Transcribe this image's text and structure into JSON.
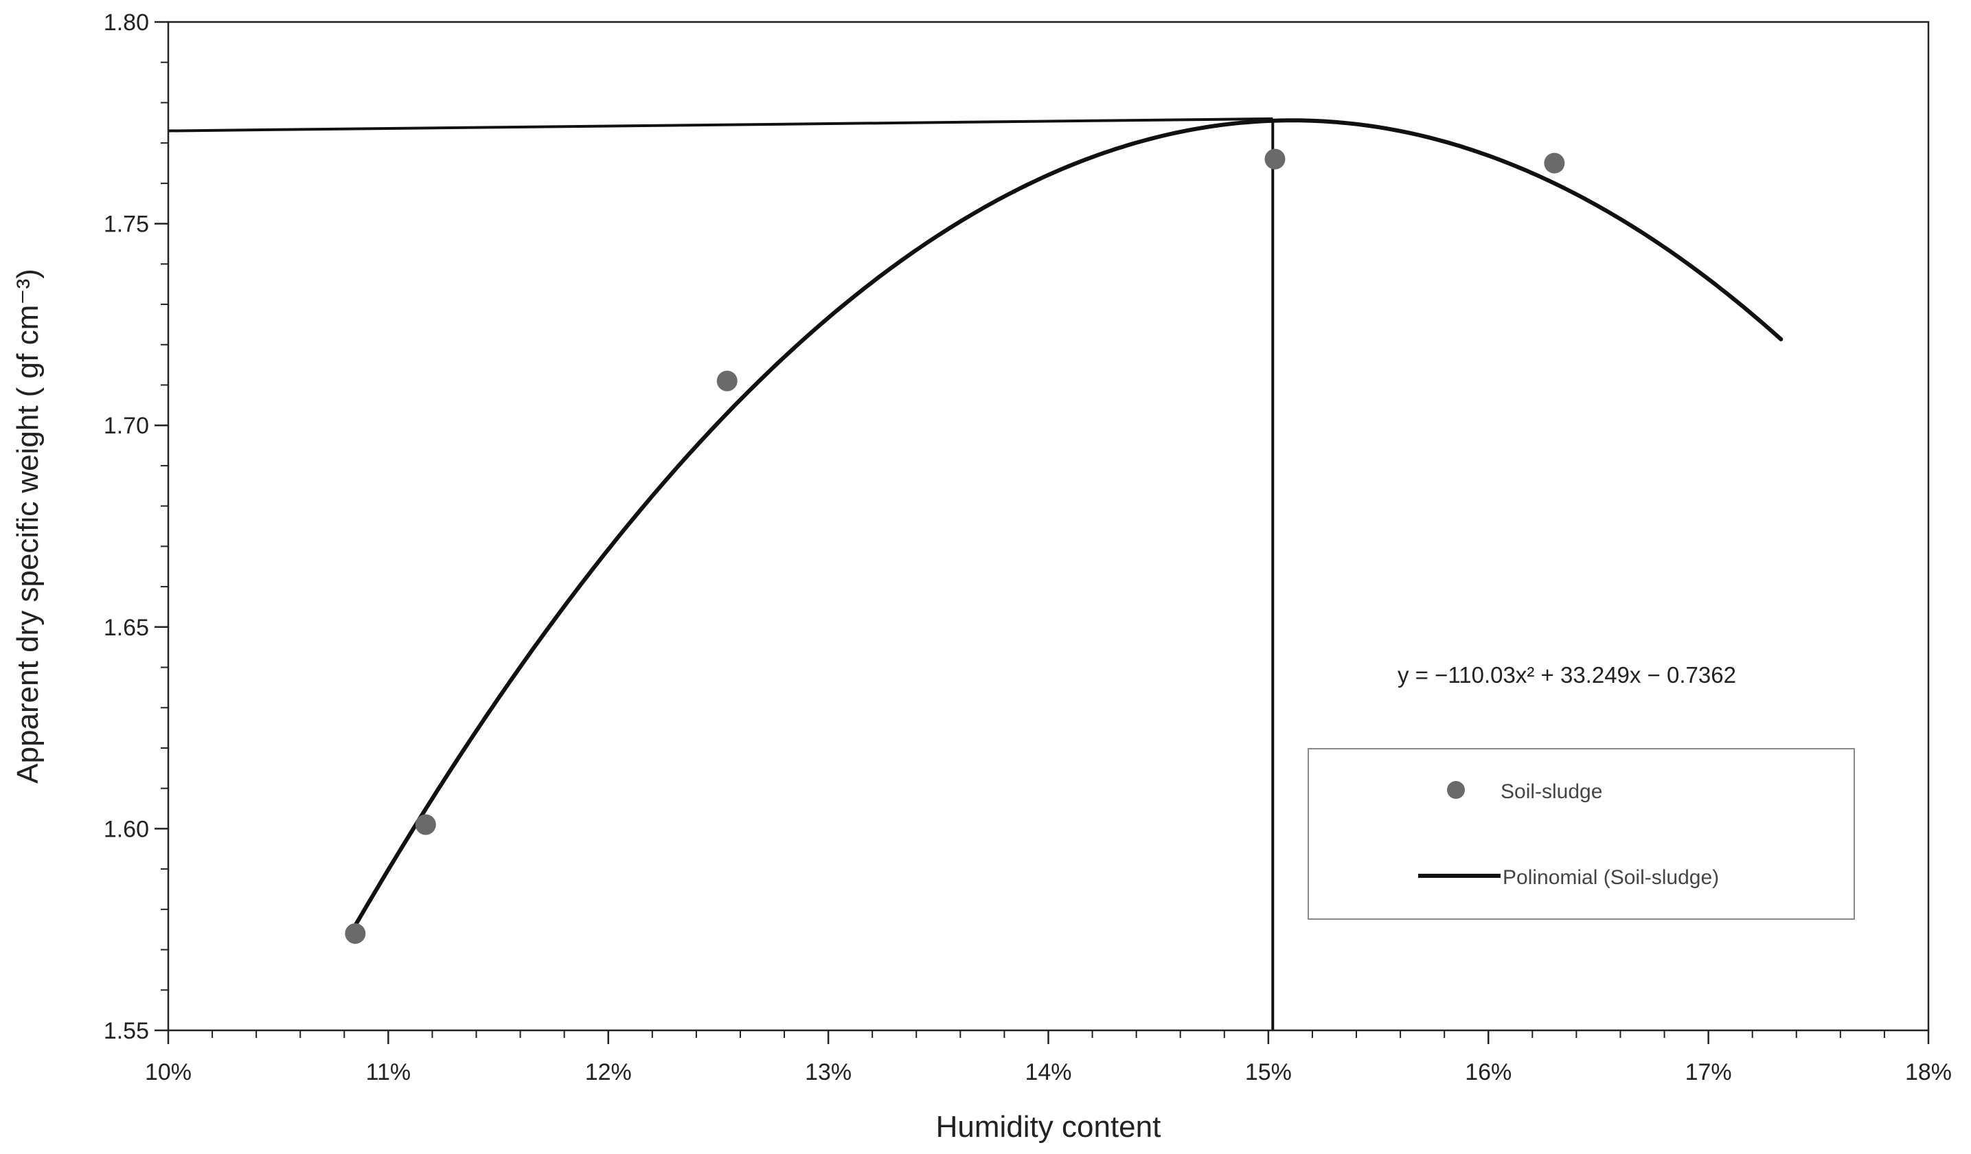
{
  "chart_data": {
    "type": "scatter",
    "xlabel": "Humidity content",
    "ylabel": "Apparent dry specific weight ( gf cm⁻³)",
    "xlim": [
      0.1,
      0.18
    ],
    "ylim": [
      1.55,
      1.8
    ],
    "x_ticks": [
      0.1,
      0.11,
      0.12,
      0.13,
      0.14,
      0.15,
      0.16,
      0.17,
      0.18
    ],
    "x_tick_labels": [
      "10%",
      "11%",
      "12%",
      "13%",
      "14%",
      "15%",
      "16%",
      "17%",
      "18%"
    ],
    "y_ticks": [
      1.55,
      1.6,
      1.65,
      1.7,
      1.75,
      1.8
    ],
    "y_tick_labels": [
      "1.55",
      "1.60",
      "1.65",
      "1.70",
      "1.75",
      "1.80"
    ],
    "grid": false,
    "series": [
      {
        "name": "Soil-sludge",
        "kind": "scatter",
        "color": "#6a6a6a",
        "x": [
          0.1085,
          0.1117,
          0.1254,
          0.1503,
          0.163
        ],
        "y": [
          1.574,
          1.601,
          1.711,
          1.766,
          1.765
        ]
      },
      {
        "name": "Polinomial (Soil-sludge)",
        "kind": "line",
        "color": "#111111",
        "coefficients": {
          "a": -110.03,
          "b": 33.249,
          "c": -0.7362
        },
        "x_range": [
          0.1085,
          0.1733
        ]
      }
    ],
    "reference_lines": {
      "optimum_x": 0.1502,
      "optimum_y": 1.776,
      "left_y": 1.773
    },
    "equation": "y = −110.03x² + 33.249x − 0.7362",
    "legend": {
      "placement": "right",
      "items": [
        {
          "label": "Soil-sludge",
          "marker": "circle"
        },
        {
          "label": "Polinomial (Soil-sludge)",
          "marker": "line"
        }
      ]
    },
    "colors": {
      "axis": "#222222",
      "point": "#6a6a6a",
      "curve": "#111111",
      "legend_border": "#8a8a8a"
    }
  }
}
